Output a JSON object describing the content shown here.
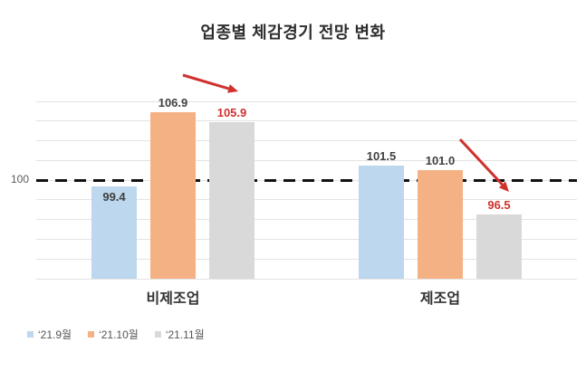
{
  "title": "업종별 체감경기 전망 변화",
  "axis": {
    "y_tick_label": "100"
  },
  "legend": [
    {
      "label": "‘21.9월",
      "color": "#BDD7EE"
    },
    {
      "label": "‘21.10월",
      "color": "#F4B183"
    },
    {
      "label": "‘21.11월",
      "color": "#D9D9D9"
    }
  ],
  "chart_data": {
    "type": "bar",
    "title": "업종별 체감경기 전망 변화",
    "categories": [
      "비제조업",
      "제조업"
    ],
    "series": [
      {
        "name": "‘21.9월",
        "color": "#BDD7EE",
        "label_color": "#404040",
        "values": [
          99.4,
          101.5
        ],
        "value_labels": [
          "99.4",
          "101.5"
        ]
      },
      {
        "name": "‘21.10월",
        "color": "#F4B183",
        "label_color": "#404040",
        "values": [
          106.9,
          101.0
        ],
        "value_labels": [
          "106.9",
          "101.0"
        ]
      },
      {
        "name": "‘21.11월",
        "color": "#D9D9D9",
        "label_color": "#D0312D",
        "values": [
          105.9,
          96.5
        ],
        "value_labels": [
          "105.9",
          "96.5"
        ]
      }
    ],
    "label_positions": [
      [
        "inside",
        "above",
        "above"
      ],
      [
        "above",
        "above",
        "above"
      ]
    ],
    "ylim": [
      90,
      108
    ],
    "grid_step": 2,
    "grid": true,
    "reference_line": {
      "value": 100,
      "style": "dashed",
      "color": "#111111"
    },
    "legend_position": "bottom-left",
    "annotations": [
      {
        "type": "arrow",
        "color": "#D0312D",
        "from": [
          202,
          83
        ],
        "to": [
          263,
          101
        ]
      },
      {
        "type": "arrow",
        "color": "#D0312D",
        "from": [
          508,
          154
        ],
        "to": [
          562,
          212
        ]
      }
    ]
  }
}
